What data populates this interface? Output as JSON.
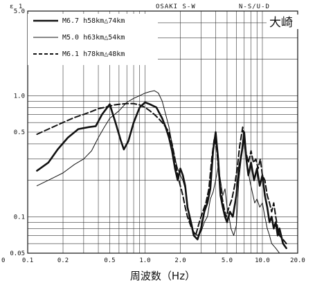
{
  "chart_data": {
    "type": "line",
    "header": {
      "left": "ε  1",
      "code": "OSAKI  S-W",
      "right": "N-S/U-D"
    },
    "site": "大崎",
    "xlabel": "周波数（Hz）",
    "ylabel": "",
    "x_scale": "log",
    "y_scale": "log",
    "xlim": [
      0.1,
      20
    ],
    "ylim": [
      0.05,
      5
    ],
    "x_ticks": [
      {
        "v": 0.1,
        "t": "0.1"
      },
      {
        "v": 0.2,
        "t": "0.2"
      },
      {
        "v": 0.5,
        "t": "0.5"
      },
      {
        "v": 1,
        "t": "1.0"
      },
      {
        "v": 2,
        "t": "2.0"
      },
      {
        "v": 5,
        "t": "5.0"
      },
      {
        "v": 10,
        "t": "10.0"
      },
      {
        "v": 20,
        "t": "20.0"
      }
    ],
    "x_corner_label": "0",
    "y_ticks": [
      {
        "v": 5,
        "t": "5.0"
      },
      {
        "v": 1,
        "t": "1.0"
      },
      {
        "v": 0.5,
        "t": "0.5"
      },
      {
        "v": 0.1,
        "t": "0.1"
      },
      {
        "v": 0.05,
        "t": "0.05"
      }
    ],
    "grid": true,
    "legend_position": "top-left",
    "series": [
      {
        "key": "s1",
        "style": "thick-solid",
        "legend": "M6.7 h58km△74km",
        "points": [
          [
            0.12,
            0.24
          ],
          [
            0.15,
            0.28
          ],
          [
            0.18,
            0.36
          ],
          [
            0.22,
            0.45
          ],
          [
            0.27,
            0.53
          ],
          [
            0.33,
            0.55
          ],
          [
            0.38,
            0.56
          ],
          [
            0.43,
            0.7
          ],
          [
            0.5,
            0.85
          ],
          [
            0.56,
            0.6
          ],
          [
            0.62,
            0.43
          ],
          [
            0.66,
            0.36
          ],
          [
            0.72,
            0.42
          ],
          [
            0.8,
            0.6
          ],
          [
            0.9,
            0.8
          ],
          [
            1.0,
            0.88
          ],
          [
            1.1,
            0.85
          ],
          [
            1.25,
            0.8
          ],
          [
            1.4,
            0.65
          ],
          [
            1.5,
            0.55
          ],
          [
            1.6,
            0.45
          ],
          [
            1.7,
            0.35
          ],
          [
            1.8,
            0.25
          ],
          [
            1.9,
            0.2
          ],
          [
            2.0,
            0.25
          ],
          [
            2.1,
            0.22
          ],
          [
            2.2,
            0.18
          ],
          [
            2.3,
            0.12
          ],
          [
            2.5,
            0.085
          ],
          [
            2.6,
            0.07
          ],
          [
            2.8,
            0.065
          ],
          [
            3.0,
            0.08
          ],
          [
            3.2,
            0.11
          ],
          [
            3.4,
            0.13
          ],
          [
            3.6,
            0.17
          ],
          [
            3.8,
            0.35
          ],
          [
            4.0,
            0.5
          ],
          [
            4.2,
            0.3
          ],
          [
            4.4,
            0.15
          ],
          [
            4.6,
            0.12
          ],
          [
            4.8,
            0.1
          ],
          [
            5.0,
            0.09
          ],
          [
            5.3,
            0.11
          ],
          [
            5.6,
            0.1
          ],
          [
            6.0,
            0.15
          ],
          [
            6.3,
            0.25
          ],
          [
            6.7,
            0.35
          ],
          [
            7.0,
            0.5
          ],
          [
            7.3,
            0.3
          ],
          [
            7.6,
            0.22
          ],
          [
            8.0,
            0.28
          ],
          [
            8.5,
            0.2
          ],
          [
            9.0,
            0.25
          ],
          [
            9.5,
            0.18
          ],
          [
            10.0,
            0.22
          ],
          [
            10.5,
            0.15
          ],
          [
            11.0,
            0.12
          ],
          [
            11.5,
            0.09
          ],
          [
            12.0,
            0.1
          ],
          [
            12.5,
            0.08
          ],
          [
            13.0,
            0.09
          ],
          [
            13.5,
            0.07
          ],
          [
            14.0,
            0.08
          ],
          [
            15.0,
            0.06
          ],
          [
            16.0,
            0.055
          ]
        ]
      },
      {
        "key": "s2",
        "style": "thin-solid",
        "legend": "M5.0 h63km△54km",
        "points": [
          [
            0.12,
            0.18
          ],
          [
            0.15,
            0.2
          ],
          [
            0.2,
            0.23
          ],
          [
            0.25,
            0.27
          ],
          [
            0.3,
            0.3
          ],
          [
            0.35,
            0.35
          ],
          [
            0.4,
            0.45
          ],
          [
            0.45,
            0.55
          ],
          [
            0.5,
            0.65
          ],
          [
            0.6,
            0.75
          ],
          [
            0.7,
            0.88
          ],
          [
            0.8,
            0.95
          ],
          [
            0.9,
            1.0
          ],
          [
            1.0,
            1.05
          ],
          [
            1.1,
            1.08
          ],
          [
            1.2,
            1.1
          ],
          [
            1.3,
            1.05
          ],
          [
            1.4,
            0.9
          ],
          [
            1.5,
            0.7
          ],
          [
            1.6,
            0.55
          ],
          [
            1.7,
            0.4
          ],
          [
            1.8,
            0.3
          ],
          [
            1.9,
            0.25
          ],
          [
            2.0,
            0.22
          ],
          [
            2.1,
            0.2
          ],
          [
            2.2,
            0.17
          ],
          [
            2.3,
            0.13
          ],
          [
            2.4,
            0.09
          ],
          [
            2.6,
            0.075
          ],
          [
            2.8,
            0.07
          ],
          [
            3.0,
            0.075
          ],
          [
            3.2,
            0.09
          ],
          [
            3.4,
            0.1
          ],
          [
            3.6,
            0.14
          ],
          [
            3.8,
            0.16
          ],
          [
            4.0,
            0.2
          ],
          [
            4.2,
            0.26
          ],
          [
            4.4,
            0.2
          ],
          [
            4.6,
            0.15
          ],
          [
            4.8,
            0.17
          ],
          [
            5.0,
            0.12
          ],
          [
            5.2,
            0.1
          ],
          [
            5.4,
            0.08
          ],
          [
            5.7,
            0.07
          ],
          [
            6.0,
            0.085
          ],
          [
            6.3,
            0.2
          ],
          [
            6.6,
            0.3
          ],
          [
            7.0,
            0.43
          ],
          [
            7.4,
            0.28
          ],
          [
            7.8,
            0.2
          ],
          [
            8.2,
            0.16
          ],
          [
            8.6,
            0.13
          ],
          [
            9.0,
            0.14
          ],
          [
            9.5,
            0.12
          ],
          [
            10.0,
            0.13
          ],
          [
            10.5,
            0.1
          ],
          [
            11.0,
            0.08
          ],
          [
            11.5,
            0.07
          ],
          [
            12.0,
            0.06
          ],
          [
            13.0,
            0.055
          ],
          [
            14.0,
            0.05
          ]
        ]
      },
      {
        "key": "s3",
        "style": "dashed",
        "legend": "M6.1 h78km△48km",
        "points": [
          [
            0.12,
            0.48
          ],
          [
            0.15,
            0.53
          ],
          [
            0.2,
            0.6
          ],
          [
            0.25,
            0.66
          ],
          [
            0.3,
            0.7
          ],
          [
            0.35,
            0.74
          ],
          [
            0.4,
            0.78
          ],
          [
            0.45,
            0.8
          ],
          [
            0.5,
            0.82
          ],
          [
            0.55,
            0.84
          ],
          [
            0.6,
            0.85
          ],
          [
            0.7,
            0.86
          ],
          [
            0.8,
            0.86
          ],
          [
            0.9,
            0.84
          ],
          [
            1.0,
            0.8
          ],
          [
            1.1,
            0.75
          ],
          [
            1.2,
            0.7
          ],
          [
            1.3,
            0.65
          ],
          [
            1.4,
            0.6
          ],
          [
            1.5,
            0.55
          ],
          [
            1.6,
            0.5
          ],
          [
            1.7,
            0.4
          ],
          [
            1.8,
            0.3
          ],
          [
            1.9,
            0.22
          ],
          [
            2.0,
            0.18
          ],
          [
            2.1,
            0.15
          ],
          [
            2.2,
            0.12
          ],
          [
            2.3,
            0.1
          ],
          [
            2.5,
            0.08
          ],
          [
            2.7,
            0.07
          ],
          [
            2.9,
            0.09
          ],
          [
            3.1,
            0.11
          ],
          [
            3.3,
            0.13
          ],
          [
            3.5,
            0.17
          ],
          [
            3.7,
            0.3
          ],
          [
            3.9,
            0.45
          ],
          [
            4.1,
            0.35
          ],
          [
            4.3,
            0.2
          ],
          [
            4.5,
            0.15
          ],
          [
            4.7,
            0.12
          ],
          [
            4.9,
            0.1
          ],
          [
            5.2,
            0.12
          ],
          [
            5.5,
            0.14
          ],
          [
            5.8,
            0.18
          ],
          [
            6.1,
            0.25
          ],
          [
            6.4,
            0.38
          ],
          [
            6.8,
            0.55
          ],
          [
            7.2,
            0.35
          ],
          [
            7.6,
            0.28
          ],
          [
            8.0,
            0.35
          ],
          [
            8.4,
            0.28
          ],
          [
            8.8,
            0.3
          ],
          [
            9.2,
            0.25
          ],
          [
            9.6,
            0.3
          ],
          [
            10.0,
            0.22
          ],
          [
            10.5,
            0.2
          ],
          [
            11.0,
            0.15
          ],
          [
            11.5,
            0.13
          ],
          [
            12.0,
            0.11
          ],
          [
            12.5,
            0.13
          ],
          [
            13.0,
            0.1
          ],
          [
            13.5,
            0.08
          ],
          [
            14.0,
            0.07
          ],
          [
            15.0,
            0.065
          ],
          [
            16.0,
            0.06
          ]
        ]
      }
    ]
  }
}
